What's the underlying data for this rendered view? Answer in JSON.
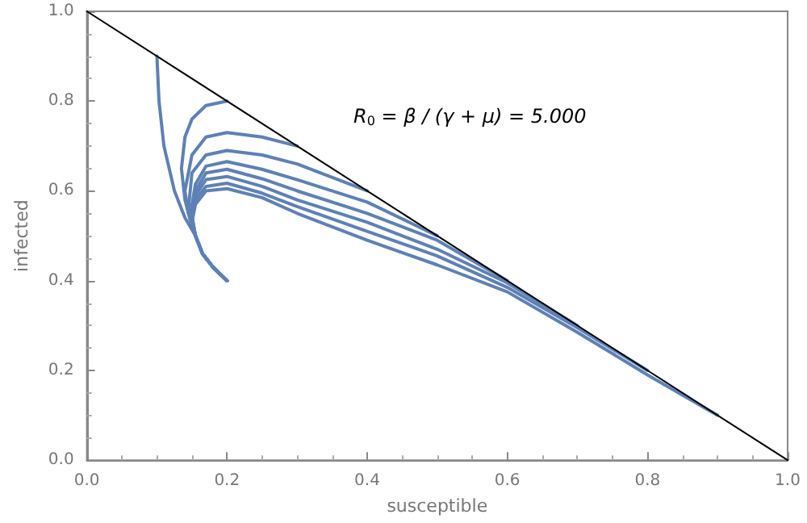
{
  "chart_data": {
    "type": "line",
    "xlabel": "susceptible",
    "ylabel": "infected",
    "xlim": [
      0,
      1
    ],
    "ylim": [
      0,
      1
    ],
    "xticks": [
      {
        "value": 0,
        "label": "0.0"
      },
      0.2,
      0.4,
      0.6,
      0.8,
      {
        "value": 1,
        "label": "1.0"
      }
    ],
    "yticks": [
      {
        "value": 0,
        "label": "0.0"
      },
      0.2,
      0.4,
      0.6,
      0.8,
      {
        "value": 1,
        "label": "1.0"
      }
    ],
    "grid": false,
    "marker": "none",
    "line_style": "solid",
    "annotations": [
      "R$_{0}$ = β / (γ + μ) = 5.000"
    ],
    "series": [
      {
        "color": "#000000",
        "x": [
          0,
          1
        ],
        "values": [
          1,
          0
        ]
      },
      {
        "color": "#5e81b5",
        "x": [
          0.1,
          0.103,
          0.11,
          0.125,
          0.14,
          0.155,
          0.165,
          0.18,
          0.2
        ],
        "values": [
          0.9,
          0.8,
          0.7,
          0.6,
          0.54,
          0.5,
          0.46,
          0.43,
          0.4
        ]
      },
      {
        "color": "#5e81b5",
        "x": [
          0.2,
          0.17,
          0.15,
          0.14,
          0.135,
          0.14,
          0.15,
          0.155,
          0.165,
          0.18,
          0.2
        ],
        "values": [
          0.8,
          0.79,
          0.76,
          0.72,
          0.65,
          0.58,
          0.52,
          0.5,
          0.46,
          0.43,
          0.4
        ]
      },
      {
        "color": "#5e81b5",
        "x": [
          0.3,
          0.25,
          0.2,
          0.17,
          0.15,
          0.14,
          0.145,
          0.155,
          0.165,
          0.18,
          0.2
        ],
        "values": [
          0.7,
          0.72,
          0.73,
          0.72,
          0.68,
          0.6,
          0.55,
          0.5,
          0.46,
          0.43,
          0.4
        ]
      },
      {
        "color": "#5e81b5",
        "x": [
          0.4,
          0.3,
          0.25,
          0.2,
          0.17,
          0.15,
          0.145,
          0.155,
          0.165,
          0.18,
          0.2
        ],
        "values": [
          0.6,
          0.66,
          0.68,
          0.69,
          0.68,
          0.64,
          0.56,
          0.5,
          0.46,
          0.43,
          0.4
        ]
      },
      {
        "color": "#5e81b5",
        "x": [
          0.5,
          0.4,
          0.3,
          0.25,
          0.2,
          0.17,
          0.155,
          0.148,
          0.155,
          0.165,
          0.18,
          0.2
        ],
        "values": [
          0.5,
          0.575,
          0.625,
          0.648,
          0.665,
          0.655,
          0.615,
          0.55,
          0.5,
          0.46,
          0.43,
          0.4
        ]
      },
      {
        "color": "#5e81b5",
        "x": [
          0.6,
          0.5,
          0.4,
          0.3,
          0.25,
          0.2,
          0.17,
          0.155,
          0.15,
          0.155,
          0.165,
          0.18,
          0.2
        ],
        "values": [
          0.4,
          0.49,
          0.55,
          0.6,
          0.627,
          0.648,
          0.64,
          0.6,
          0.545,
          0.5,
          0.46,
          0.43,
          0.4
        ]
      },
      {
        "color": "#5e81b5",
        "x": [
          0.7,
          0.6,
          0.5,
          0.4,
          0.3,
          0.25,
          0.2,
          0.17,
          0.155,
          0.15,
          0.155,
          0.165,
          0.18,
          0.2
        ],
        "values": [
          0.3,
          0.395,
          0.47,
          0.53,
          0.58,
          0.61,
          0.632,
          0.625,
          0.59,
          0.54,
          0.5,
          0.46,
          0.43,
          0.4
        ]
      },
      {
        "color": "#5e81b5",
        "x": [
          0.8,
          0.7,
          0.6,
          0.5,
          0.4,
          0.3,
          0.25,
          0.2,
          0.17,
          0.155,
          0.15,
          0.155,
          0.165,
          0.18,
          0.2
        ],
        "values": [
          0.2,
          0.295,
          0.385,
          0.455,
          0.51,
          0.565,
          0.595,
          0.617,
          0.61,
          0.58,
          0.54,
          0.5,
          0.46,
          0.43,
          0.4
        ]
      },
      {
        "color": "#5e81b5",
        "x": [
          0.9,
          0.8,
          0.7,
          0.6,
          0.5,
          0.4,
          0.3,
          0.25,
          0.2,
          0.17,
          0.155,
          0.15,
          0.155,
          0.165,
          0.18,
          0.2
        ],
        "values": [
          0.1,
          0.19,
          0.285,
          0.375,
          0.435,
          0.49,
          0.55,
          0.585,
          0.605,
          0.6,
          0.57,
          0.53,
          0.5,
          0.46,
          0.43,
          0.4
        ]
      }
    ]
  }
}
